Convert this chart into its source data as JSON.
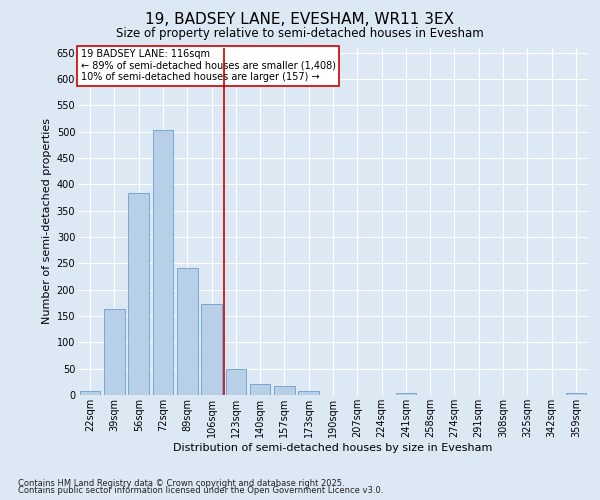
{
  "title": "19, BADSEY LANE, EVESHAM, WR11 3EX",
  "subtitle": "Size of property relative to semi-detached houses in Evesham",
  "xlabel": "Distribution of semi-detached houses by size in Evesham",
  "ylabel": "Number of semi-detached properties",
  "categories": [
    "22sqm",
    "39sqm",
    "56sqm",
    "72sqm",
    "89sqm",
    "106sqm",
    "123sqm",
    "140sqm",
    "157sqm",
    "173sqm",
    "190sqm",
    "207sqm",
    "224sqm",
    "241sqm",
    "258sqm",
    "274sqm",
    "291sqm",
    "308sqm",
    "325sqm",
    "342sqm",
    "359sqm"
  ],
  "values": [
    8,
    163,
    383,
    503,
    241,
    172,
    50,
    20,
    17,
    8,
    0,
    0,
    0,
    4,
    0,
    0,
    0,
    0,
    0,
    0,
    3
  ],
  "bar_color": "#b8cfe8",
  "bar_edge_color": "#6a9fd0",
  "vline_x": 5.5,
  "vline_label": "19 BADSEY LANE: 116sqm",
  "annotation_line1": "← 89% of semi-detached houses are smaller (1,408)",
  "annotation_line2": "10% of semi-detached houses are larger (157) →",
  "annotation_box_color": "#ffffff",
  "annotation_box_edge": "#cc0000",
  "vline_color": "#cc0000",
  "ylim": [
    0,
    660
  ],
  "yticks": [
    0,
    50,
    100,
    150,
    200,
    250,
    300,
    350,
    400,
    450,
    500,
    550,
    600,
    650
  ],
  "bg_color": "#dde8f5",
  "plot_bg_color": "#dde8f5",
  "footer_line1": "Contains HM Land Registry data © Crown copyright and database right 2025.",
  "footer_line2": "Contains public sector information licensed under the Open Government Licence v3.0.",
  "title_fontsize": 11,
  "subtitle_fontsize": 8.5,
  "axis_label_fontsize": 8,
  "tick_fontsize": 7,
  "footer_fontsize": 6,
  "annotation_fontsize": 7
}
